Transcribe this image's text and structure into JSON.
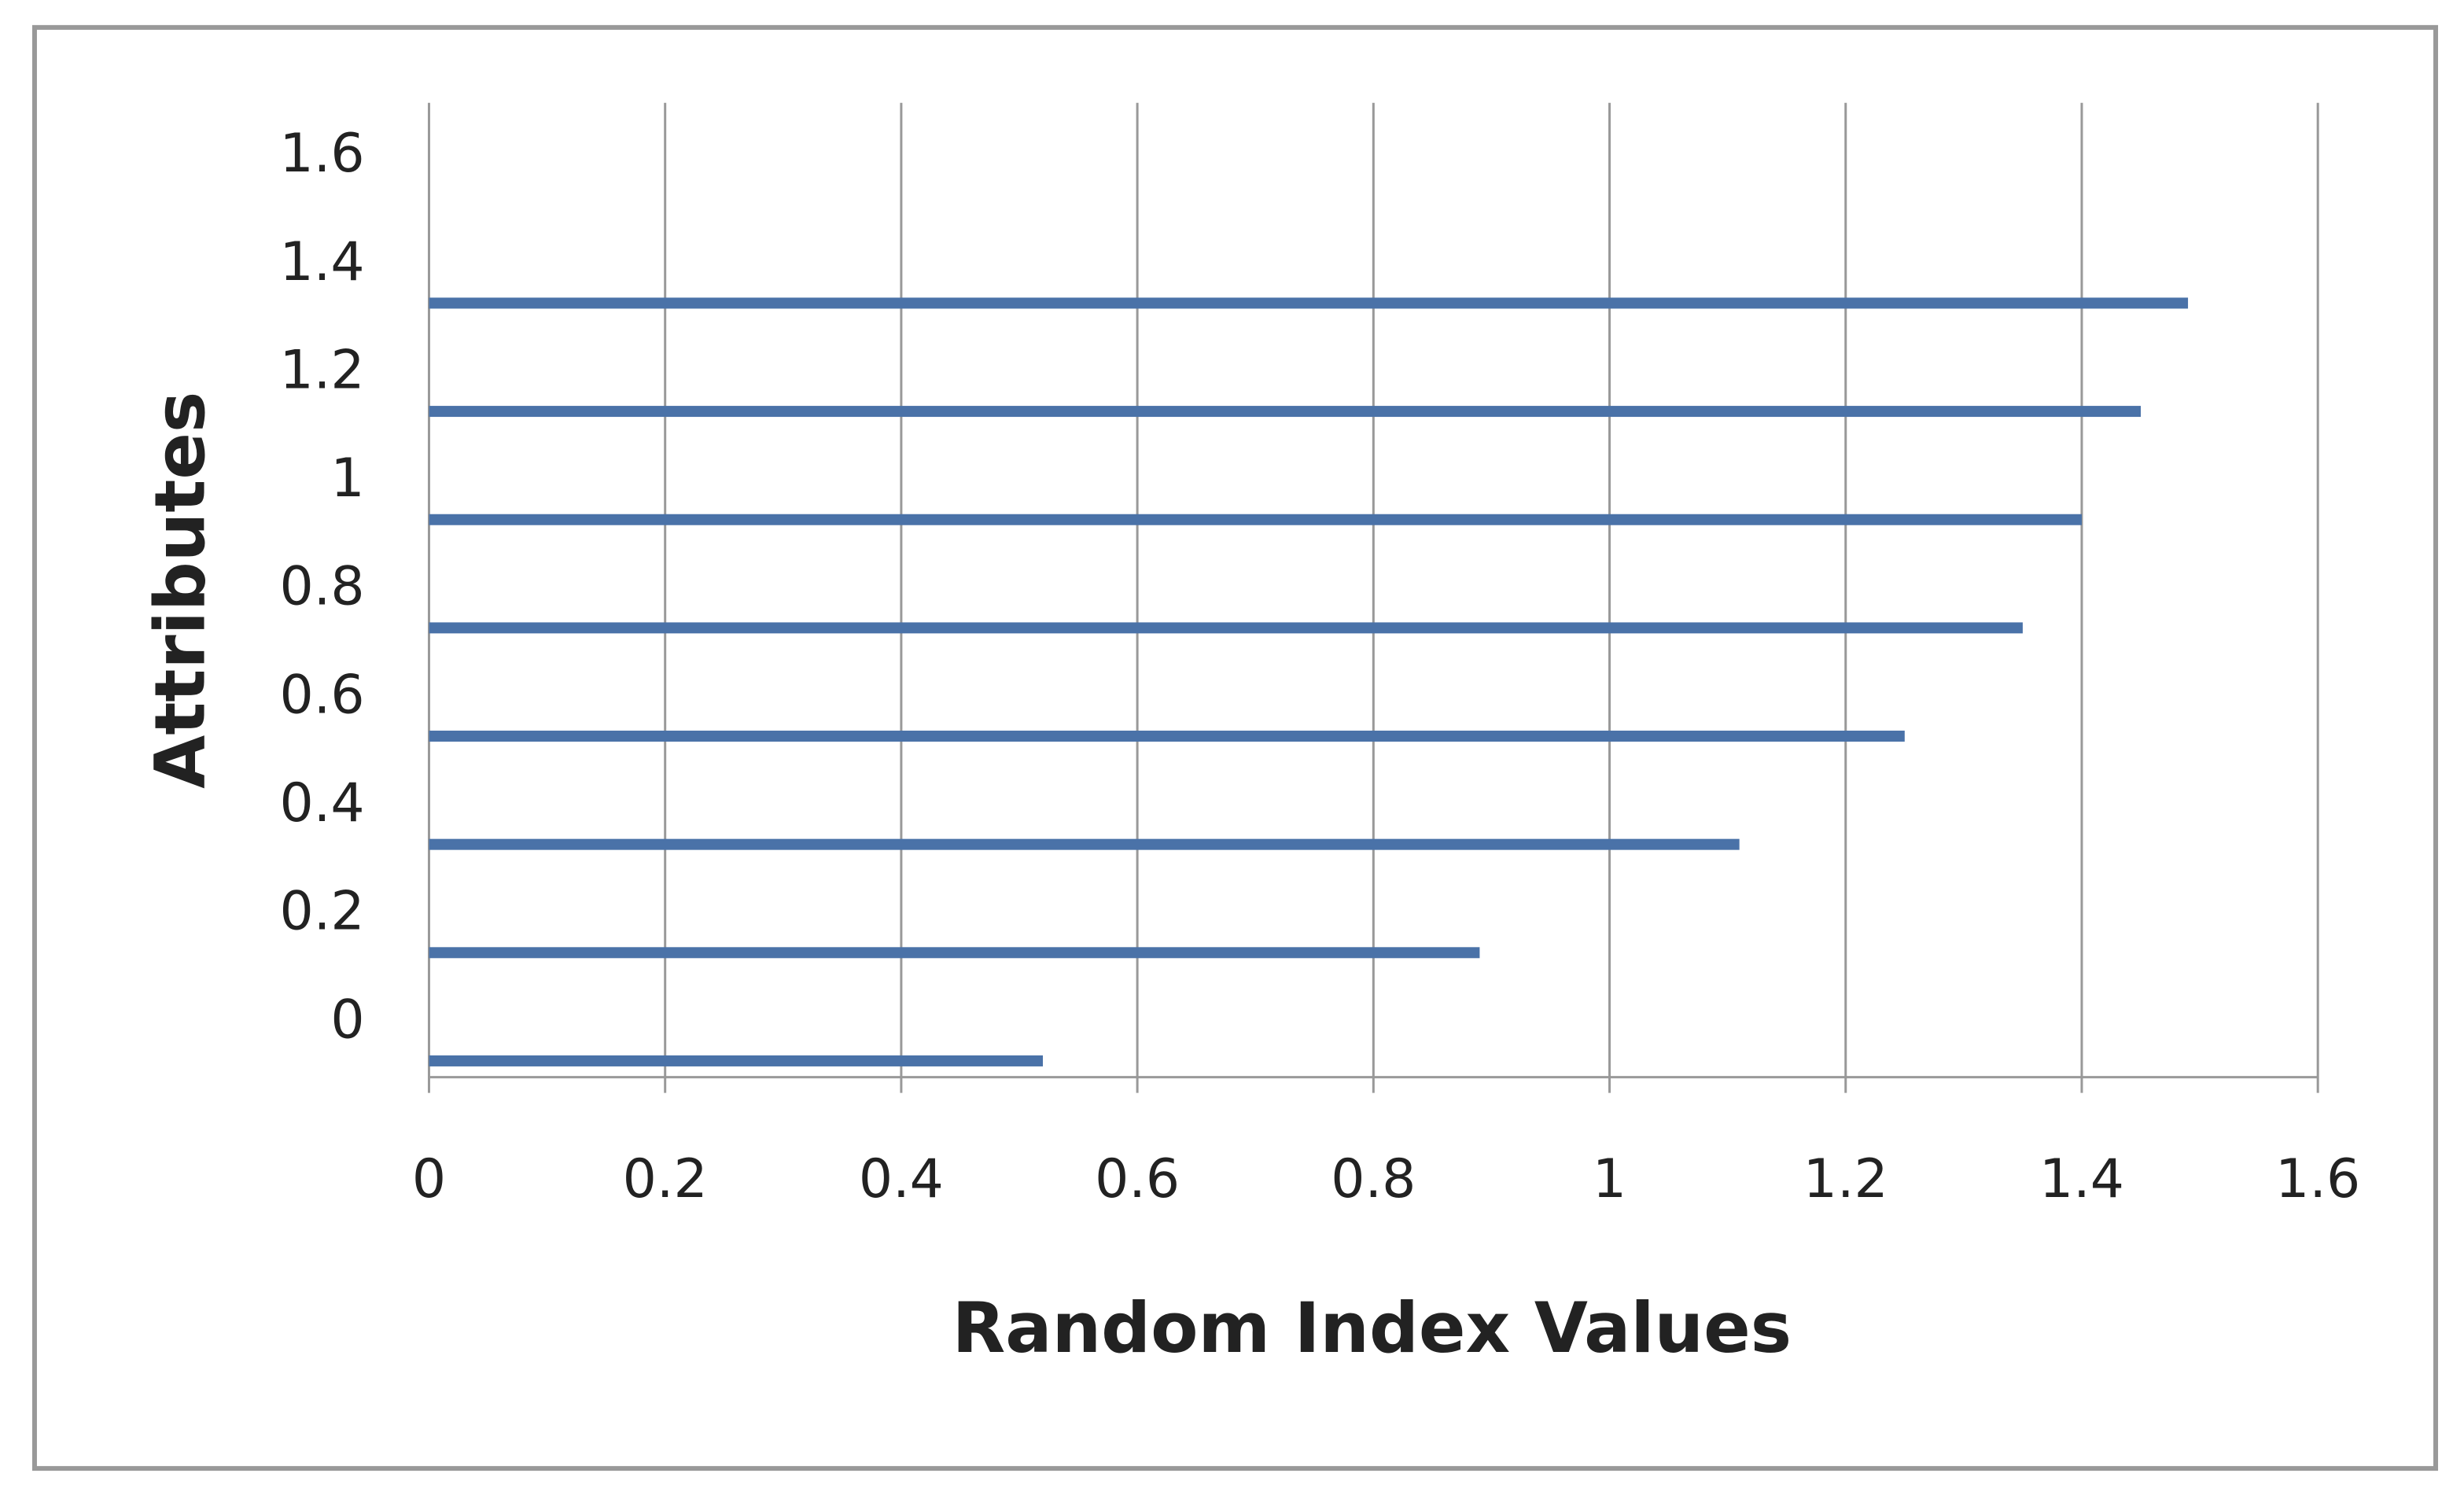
{
  "chart_data": {
    "type": "bar",
    "orientation": "horizontal",
    "x_label": "Random Index Values",
    "y_label": "Attributes",
    "y": [
      -0.07,
      0.13,
      0.33,
      0.53,
      0.73,
      0.93,
      1.13,
      1.33
    ],
    "values": [
      0.52,
      0.89,
      1.11,
      1.25,
      1.35,
      1.4,
      1.45,
      1.49
    ],
    "color": "#4a72a8",
    "xlim": [
      0,
      1.6
    ],
    "xticks": [
      0,
      0.2,
      0.4,
      0.6,
      0.8,
      1,
      1.2,
      1.4,
      1.6
    ],
    "ylim": [
      -0.1,
      1.7
    ],
    "yticks": [
      0,
      0.2,
      0.4,
      0.6,
      0.8,
      1,
      1.2,
      1.4,
      1.6
    ],
    "grid": true
  }
}
